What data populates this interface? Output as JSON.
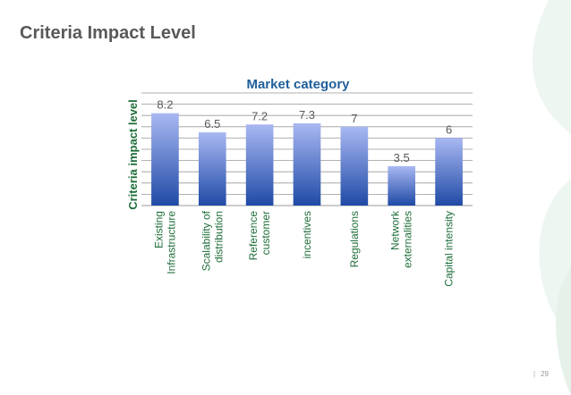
{
  "slide": {
    "title": "Criteria Impact Level",
    "page_number": "29"
  },
  "colors": {
    "bar_top": "#a9b8f2",
    "bar_bottom": "#1f4aa6",
    "chart_title": "#1f5f9a",
    "axis_label": "#1f6e3a",
    "gridline": "#999999",
    "decoration": "#e6f1ea"
  },
  "chart_data": {
    "type": "bar",
    "title": "Market category",
    "ylabel": "Criteria impact level",
    "xlabel": "",
    "categories": [
      [
        "Existing",
        "Infrastructure"
      ],
      [
        "Scalability of",
        "distribution"
      ],
      [
        "Reference",
        "customer"
      ],
      [
        "incentives"
      ],
      [
        "Regulations"
      ],
      [
        "Network",
        "externalities"
      ],
      [
        "Capital intensity"
      ]
    ],
    "values": [
      8.2,
      6.5,
      7.2,
      7.3,
      7,
      3.5,
      6
    ],
    "data_labels": [
      "8.2",
      "6.5",
      "7.2",
      "7.3",
      "7",
      "3.5",
      "6"
    ],
    "ylim": [
      0,
      10
    ],
    "grid": true,
    "legend": "none"
  }
}
